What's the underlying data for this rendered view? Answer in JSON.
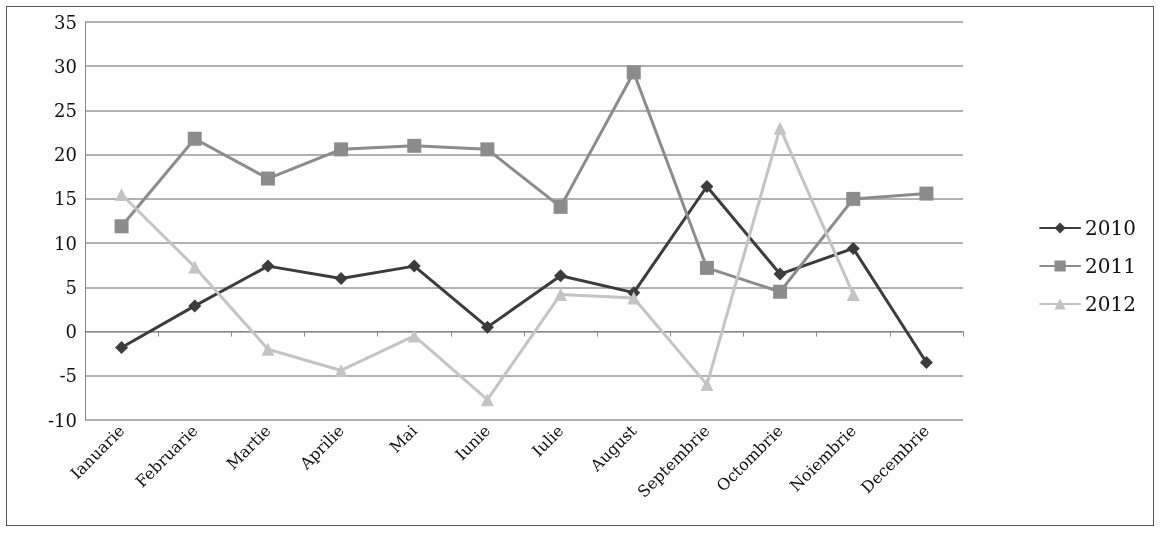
{
  "chart_data": {
    "type": "line",
    "categories": [
      "Ianuarie",
      "Februarie",
      "Martie",
      "Aprilie",
      "Mai",
      "Iunie",
      "Iulie",
      "August",
      "Septembrie",
      "Octombrie",
      "Noiembrie",
      "Decembrie"
    ],
    "series": [
      {
        "name": "2010",
        "color": "#3c3c3c",
        "marker": "diamond",
        "values": [
          -1.8,
          2.9,
          7.4,
          6,
          7.4,
          0.5,
          6.3,
          4.4,
          16.4,
          6.5,
          9.4,
          -3.5
        ]
      },
      {
        "name": "2011",
        "color": "#8c8c8c",
        "marker": "square",
        "values": [
          11.9,
          21.8,
          17.3,
          20.6,
          21,
          20.6,
          14.1,
          29.3,
          7.2,
          4.5,
          15,
          15.6
        ]
      },
      {
        "name": "2012",
        "color": "#c4c4c4",
        "marker": "triangle",
        "values": [
          15.5,
          7.3,
          -2,
          -4.4,
          -0.5,
          -7.7,
          4.2,
          3.8,
          -6,
          23,
          4.2,
          null
        ]
      }
    ],
    "ylim": [
      -10,
      35
    ],
    "yticks": [
      -10,
      -5,
      0,
      5,
      10,
      15,
      20,
      25,
      30,
      35
    ],
    "grid": "y",
    "legend": "right",
    "line_style": "solid"
  }
}
